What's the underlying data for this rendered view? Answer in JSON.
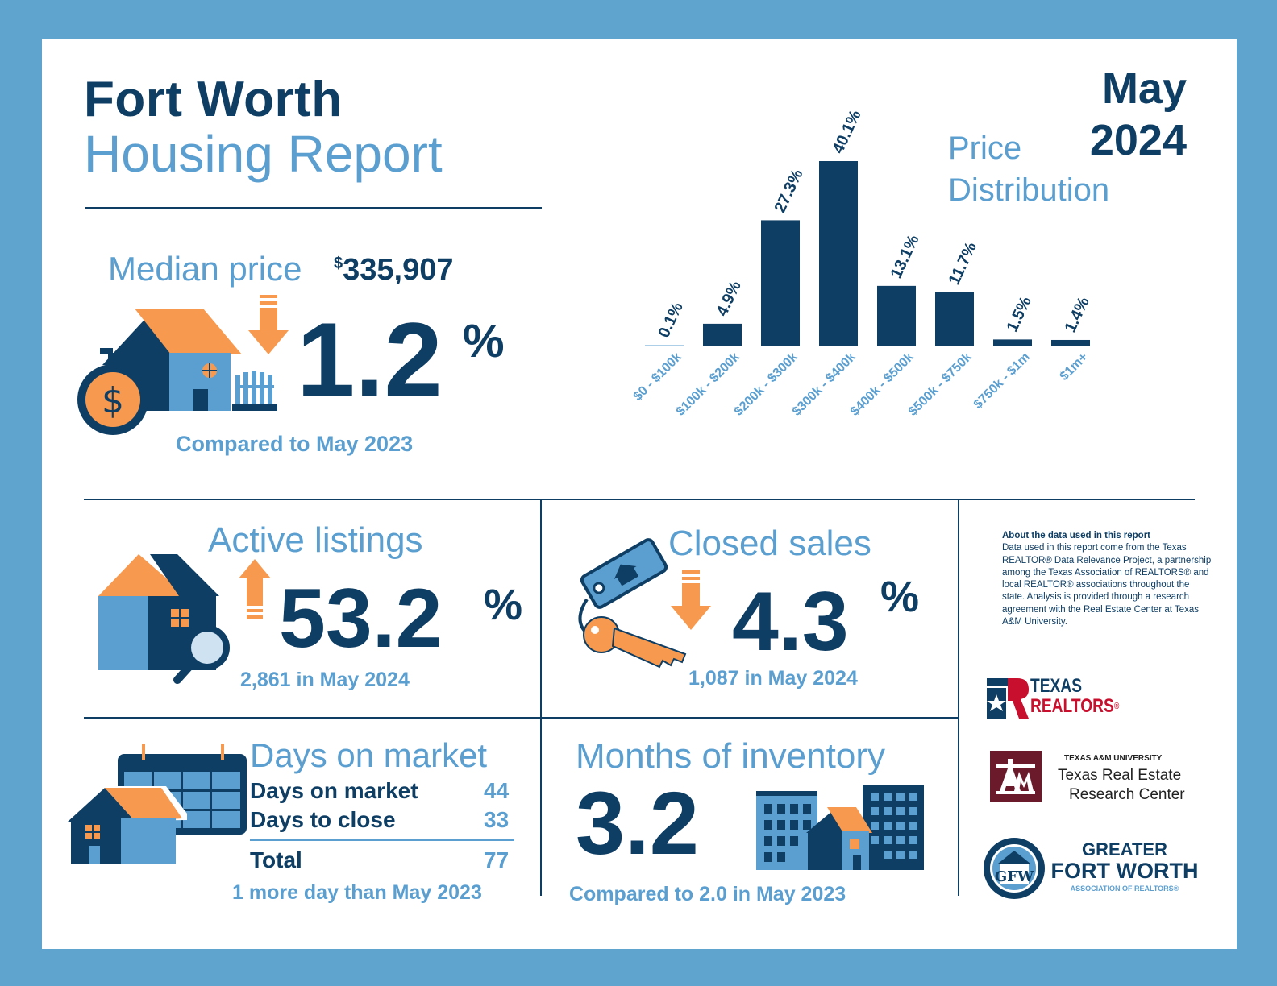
{
  "header": {
    "city": "Fort Worth",
    "report": "Housing Report",
    "month": "May",
    "year": "2024"
  },
  "median": {
    "label": "Median price",
    "currency": "$",
    "value": "335,907",
    "change": "1.2",
    "pct": "%",
    "direction": "down",
    "compare": "Compared to May 2023"
  },
  "price_distribution": {
    "label_line1": "Price",
    "label_line2": "Distribution"
  },
  "chart_data": {
    "type": "bar",
    "categories": [
      "$0 - $100k",
      "$100k - $200k",
      "$200k - $300k",
      "$300k - $400k",
      "$400k - $500k",
      "$500k - $750k",
      "$750k - $1m",
      "$1m+"
    ],
    "values": [
      0.1,
      4.9,
      27.3,
      40.1,
      13.1,
      11.7,
      1.5,
      1.4
    ],
    "labels": [
      "0.1%",
      "4.9%",
      "27.3%",
      "40.1%",
      "13.1%",
      "11.7%",
      "1.5%",
      "1.4%"
    ],
    "title": "Price Distribution",
    "ylim": [
      0,
      40.1
    ],
    "grid": false,
    "colors": {
      "bar": "#0f3e64",
      "tick": "#5b9fd0",
      "label": "#0f3e64"
    }
  },
  "active_listings": {
    "label": "Active listings",
    "change": "53.2",
    "pct": "%",
    "direction": "up",
    "sub": "2,861 in May 2024"
  },
  "closed_sales": {
    "label": "Closed sales",
    "change": "4.3",
    "pct": "%",
    "direction": "down",
    "sub": "1,087 in May 2024"
  },
  "days_on_market": {
    "label": "Days on market",
    "rows": [
      {
        "label": "Days on market",
        "value": "44"
      },
      {
        "label": "Days to close",
        "value": "33"
      }
    ],
    "total_label": "Total",
    "total_value": "77",
    "sub": "1 more day than May 2023"
  },
  "months_inventory": {
    "label": "Months of inventory",
    "value": "3.2",
    "sub": "Compared to 2.0 in May 2023"
  },
  "about": {
    "heading": "About the data used in this report",
    "body": "Data used in this report come from the Texas REALTOR® Data Relevance Project, a partnership among the Texas Association of REALTORS® and local REALTOR® associations throughout the state. Analysis is provided through a research agreement with the Real Estate Center at Texas A&M University."
  },
  "logos": {
    "texas_realtors_line1": "TEXAS",
    "texas_realtors_line2": "REALTORS",
    "texas_realtors_mark": "®",
    "tamu_small": "TEXAS A&M UNIVERSITY",
    "tamu_line1": "Texas Real Estate",
    "tamu_line2": "Research Center",
    "gfw_line1": "GREATER",
    "gfw_line2": "FORT WORTH",
    "gfw_line3": "ASSOCIATION OF REALTORS®"
  },
  "colors": {
    "navy": "#0f3e64",
    "light_blue": "#5b9fd0",
    "orange": "#f79a4f",
    "border": "#5fa3cf",
    "maroon": "#6b1a2b",
    "red": "#c8102e"
  }
}
